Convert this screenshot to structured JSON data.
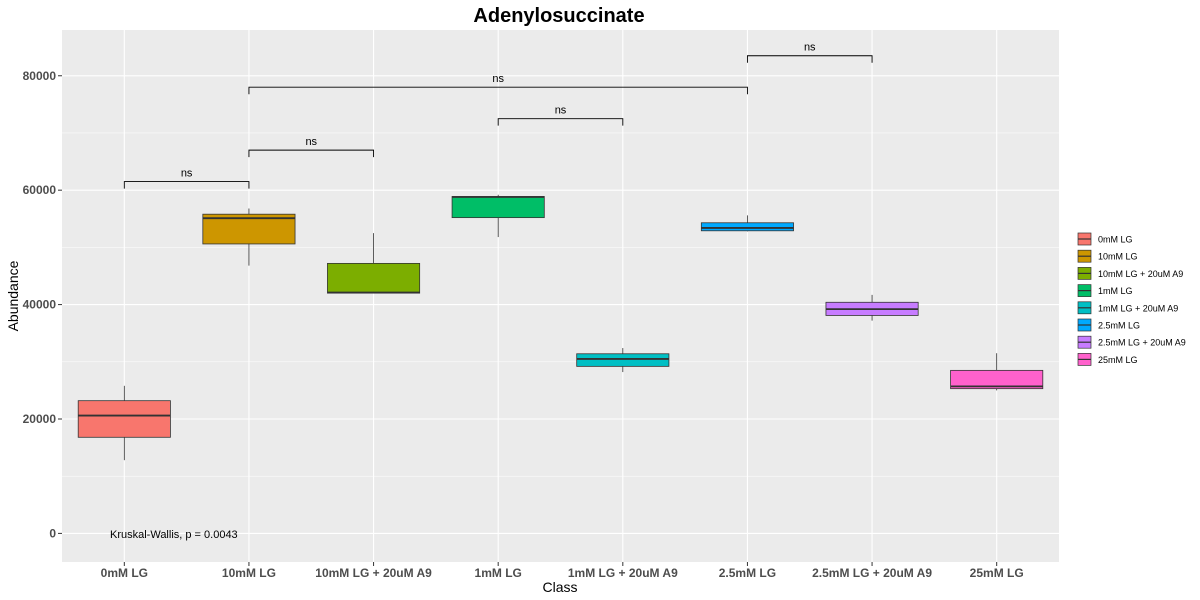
{
  "chart_data": {
    "type": "box",
    "title": "Adenylosuccinate",
    "xlabel": "Class",
    "ylabel": "Abundance",
    "ylim": [
      -5000,
      88000
    ],
    "yticks": [
      0,
      20000,
      40000,
      60000,
      80000
    ],
    "grid": true,
    "legend_position": "right",
    "categories": [
      "0mM LG",
      "10mM LG",
      "10mM LG + 20uM A9",
      "1mM LG",
      "1mM LG + 20uM A9",
      "2.5mM LG",
      "2.5mM LG + 20uM A9",
      "25mM LG"
    ],
    "boxes": [
      {
        "category": "0mM LG",
        "min": 12800,
        "q1": 16800,
        "median": 20600,
        "q3": 23200,
        "max": 25800,
        "color": "#F8766D"
      },
      {
        "category": "10mM LG",
        "min": 46800,
        "q1": 50600,
        "median": 55100,
        "q3": 55800,
        "max": 56800,
        "color": "#CD9600"
      },
      {
        "category": "10mM LG + 20uM A9",
        "min": 42000,
        "q1": 42000,
        "median": 42100,
        "q3": 47200,
        "max": 52500,
        "color": "#7CAE00"
      },
      {
        "category": "1mM LG",
        "min": 51800,
        "q1": 55200,
        "median": 58800,
        "q3": 58900,
        "max": 59200,
        "color": "#00BE67"
      },
      {
        "category": "1mM LG + 20uM A9",
        "min": 28200,
        "q1": 29200,
        "median": 30500,
        "q3": 31400,
        "max": 32400,
        "color": "#00BFC4"
      },
      {
        "category": "2.5mM LG",
        "min": 52800,
        "q1": 52900,
        "median": 53400,
        "q3": 54300,
        "max": 55600,
        "color": "#00A9FF"
      },
      {
        "category": "2.5mM LG + 20uM A9",
        "min": 37200,
        "q1": 38100,
        "median": 39200,
        "q3": 40400,
        "max": 41700,
        "color": "#C77CFF"
      },
      {
        "category": "25mM LG",
        "min": 25000,
        "q1": 25300,
        "median": 25700,
        "q3": 28500,
        "max": 31500,
        "color": "#FF61CC"
      }
    ],
    "comparisons": [
      {
        "from": "0mM LG",
        "to": "10mM LG",
        "y": 61500,
        "label": "ns"
      },
      {
        "from": "10mM LG",
        "to": "10mM LG + 20uM A9",
        "y": 67000,
        "label": "ns"
      },
      {
        "from": "1mM LG",
        "to": "1mM LG + 20uM A9",
        "y": 72500,
        "label": "ns"
      },
      {
        "from": "10mM LG",
        "to": "2.5mM LG",
        "y": 78000,
        "label": "ns"
      },
      {
        "from": "2.5mM LG",
        "to": "2.5mM LG + 20uM A9",
        "y": 83500,
        "label": "ns"
      }
    ],
    "annotation": "Kruskal-Wallis, p = 0.0043",
    "legend": [
      "0mM LG",
      "10mM LG",
      "10mM LG + 20uM A9",
      "1mM LG",
      "1mM LG + 20uM A9",
      "2.5mM LG",
      "2.5mM LG + 20uM A9",
      "25mM LG"
    ],
    "colors": {
      "panel": "#EBEBEB",
      "grid": "#FFFFFF",
      "box_outline": "#333333"
    }
  }
}
